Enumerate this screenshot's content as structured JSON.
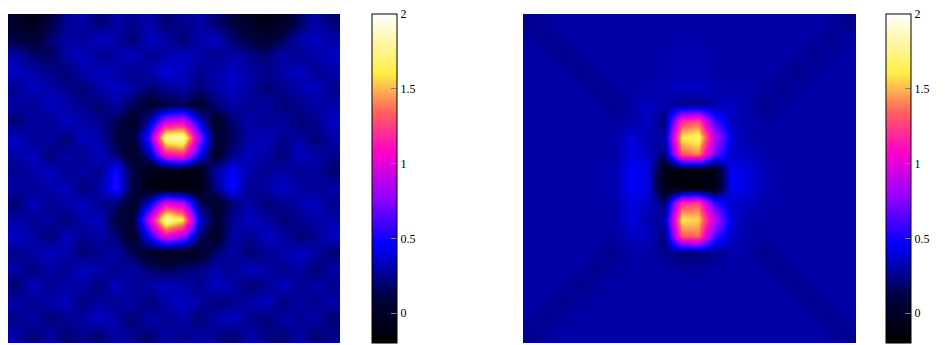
{
  "chart_data": [
    {
      "type": "heatmap",
      "tick_labels": false,
      "zlim": [
        -0.2,
        2
      ],
      "zticks": [
        0,
        0.5,
        1,
        1.5,
        2
      ],
      "z": [
        [
          0.0,
          -0.1,
          0.1,
          0.25,
          0.3,
          0.2,
          0.3,
          0.25,
          0.3,
          0.2,
          0.25,
          0.3,
          0.2,
          0.1,
          0.0,
          -0.1,
          0.0,
          0.15,
          0.3,
          0.2
        ],
        [
          0.1,
          0.05,
          0.2,
          0.3,
          0.25,
          0.35,
          0.3,
          0.2,
          0.35,
          0.3,
          0.2,
          0.3,
          0.35,
          0.2,
          0.1,
          0.05,
          0.15,
          0.3,
          0.35,
          0.3
        ],
        [
          0.3,
          0.2,
          0.15,
          0.3,
          0.35,
          0.25,
          0.3,
          0.35,
          0.25,
          0.3,
          0.35,
          0.3,
          0.25,
          0.3,
          0.25,
          0.2,
          0.3,
          0.25,
          0.3,
          0.35
        ],
        [
          0.35,
          0.3,
          0.25,
          0.2,
          0.3,
          0.35,
          0.3,
          0.25,
          0.3,
          0.4,
          0.35,
          0.25,
          0.3,
          0.35,
          0.3,
          0.25,
          0.3,
          0.35,
          0.25,
          0.3
        ],
        [
          0.25,
          0.35,
          0.3,
          0.25,
          0.2,
          0.3,
          0.35,
          0.3,
          0.2,
          0.25,
          0.3,
          0.2,
          0.3,
          0.35,
          0.3,
          0.2,
          0.25,
          0.3,
          0.35,
          0.25
        ],
        [
          0.3,
          0.25,
          0.35,
          0.3,
          0.25,
          0.2,
          0.3,
          0.15,
          0.05,
          0.1,
          0.15,
          0.05,
          0.2,
          0.3,
          0.25,
          0.3,
          0.2,
          0.25,
          0.3,
          0.3
        ],
        [
          0.2,
          0.3,
          0.25,
          0.35,
          0.3,
          0.25,
          0.15,
          0.0,
          0.3,
          0.9,
          1.0,
          0.4,
          0.0,
          0.2,
          0.3,
          0.25,
          0.3,
          0.2,
          0.25,
          0.35
        ],
        [
          0.35,
          0.25,
          0.3,
          0.2,
          0.35,
          0.3,
          0.1,
          0.05,
          0.6,
          1.8,
          1.85,
          0.8,
          0.05,
          0.15,
          0.3,
          0.35,
          0.25,
          0.3,
          0.2,
          0.3
        ],
        [
          0.3,
          0.35,
          0.2,
          0.3,
          0.25,
          0.35,
          0.2,
          0.0,
          0.3,
          1.1,
          1.2,
          0.5,
          0.0,
          0.25,
          0.35,
          0.3,
          0.2,
          0.35,
          0.3,
          0.25
        ],
        [
          0.25,
          0.3,
          0.35,
          0.25,
          0.3,
          0.25,
          0.5,
          0.1,
          -0.1,
          -0.1,
          -0.1,
          -0.1,
          0.3,
          0.45,
          0.3,
          0.25,
          0.3,
          0.25,
          0.3,
          0.2
        ],
        [
          0.3,
          0.25,
          0.3,
          0.35,
          0.2,
          0.3,
          0.55,
          0.1,
          -0.1,
          -0.15,
          -0.15,
          -0.1,
          0.25,
          0.5,
          0.25,
          0.3,
          0.35,
          0.3,
          0.25,
          0.3
        ],
        [
          0.2,
          0.35,
          0.25,
          0.3,
          0.35,
          0.25,
          0.2,
          0.0,
          0.4,
          1.0,
          0.9,
          0.2,
          0.0,
          0.2,
          0.3,
          0.2,
          0.25,
          0.3,
          0.35,
          0.25
        ],
        [
          0.3,
          0.25,
          0.3,
          0.2,
          0.3,
          0.35,
          0.1,
          0.05,
          0.9,
          1.85,
          1.6,
          0.4,
          0.05,
          0.25,
          0.35,
          0.3,
          0.2,
          0.25,
          0.3,
          0.3
        ],
        [
          0.35,
          0.3,
          0.2,
          0.35,
          0.25,
          0.3,
          0.2,
          0.0,
          0.5,
          1.0,
          0.8,
          0.2,
          0.0,
          0.3,
          0.25,
          0.35,
          0.3,
          0.2,
          0.25,
          0.35
        ],
        [
          0.25,
          0.3,
          0.35,
          0.3,
          0.2,
          0.25,
          0.3,
          0.15,
          0.0,
          -0.05,
          -0.05,
          0.0,
          0.2,
          0.3,
          0.2,
          0.25,
          0.3,
          0.35,
          0.3,
          0.2
        ],
        [
          0.3,
          0.2,
          0.3,
          0.25,
          0.35,
          0.3,
          0.25,
          0.3,
          0.2,
          0.15,
          0.2,
          0.25,
          0.3,
          0.25,
          0.35,
          0.3,
          0.25,
          0.3,
          0.2,
          0.3
        ],
        [
          0.2,
          0.35,
          0.25,
          0.3,
          0.3,
          0.2,
          0.35,
          0.25,
          0.3,
          0.35,
          0.3,
          0.25,
          0.35,
          0.3,
          0.2,
          0.25,
          0.35,
          0.25,
          0.3,
          0.25
        ],
        [
          0.3,
          0.25,
          0.3,
          0.35,
          0.2,
          0.3,
          0.25,
          0.3,
          0.2,
          0.3,
          0.35,
          0.3,
          0.2,
          0.25,
          0.3,
          0.35,
          0.2,
          0.3,
          0.25,
          0.3
        ],
        [
          0.25,
          0.3,
          0.2,
          0.25,
          0.3,
          0.35,
          0.3,
          0.2,
          0.3,
          0.25,
          0.3,
          0.2,
          0.3,
          0.35,
          0.25,
          0.2,
          0.3,
          0.25,
          0.3,
          0.2
        ],
        [
          0.3,
          0.2,
          0.3,
          0.2,
          0.25,
          0.2,
          0.3,
          0.25,
          0.2,
          0.3,
          0.25,
          0.3,
          0.25,
          0.2,
          0.3,
          0.25,
          0.2,
          0.3,
          0.2,
          0.25
        ]
      ]
    },
    {
      "type": "heatmap",
      "tick_labels": false,
      "zlim": [
        -0.2,
        2
      ],
      "zticks": [
        0,
        0.5,
        1,
        1.5,
        2
      ],
      "z": [
        [
          0.25,
          0.28,
          0.3,
          0.3,
          0.3,
          0.3,
          0.3,
          0.3,
          0.3,
          0.3,
          0.3,
          0.3,
          0.3,
          0.3,
          0.3,
          0.3,
          0.3,
          0.3,
          0.28,
          0.25
        ],
        [
          0.28,
          0.25,
          0.28,
          0.3,
          0.3,
          0.3,
          0.3,
          0.3,
          0.3,
          0.3,
          0.3,
          0.3,
          0.3,
          0.3,
          0.3,
          0.3,
          0.3,
          0.28,
          0.25,
          0.28
        ],
        [
          0.3,
          0.28,
          0.25,
          0.28,
          0.3,
          0.3,
          0.3,
          0.3,
          0.3,
          0.32,
          0.32,
          0.3,
          0.3,
          0.3,
          0.3,
          0.3,
          0.28,
          0.25,
          0.28,
          0.3
        ],
        [
          0.3,
          0.3,
          0.28,
          0.25,
          0.28,
          0.3,
          0.3,
          0.3,
          0.3,
          0.32,
          0.32,
          0.3,
          0.3,
          0.3,
          0.3,
          0.28,
          0.25,
          0.28,
          0.3,
          0.3
        ],
        [
          0.3,
          0.3,
          0.3,
          0.28,
          0.25,
          0.28,
          0.3,
          0.3,
          0.32,
          0.35,
          0.35,
          0.32,
          0.3,
          0.3,
          0.28,
          0.25,
          0.28,
          0.3,
          0.3,
          0.3
        ],
        [
          0.3,
          0.3,
          0.3,
          0.3,
          0.28,
          0.25,
          0.3,
          0.35,
          0.3,
          0.25,
          0.25,
          0.3,
          0.35,
          0.3,
          0.25,
          0.28,
          0.3,
          0.3,
          0.3,
          0.3
        ],
        [
          0.3,
          0.3,
          0.3,
          0.3,
          0.3,
          0.28,
          0.3,
          0.35,
          0.2,
          1.2,
          1.3,
          0.6,
          0.35,
          0.3,
          0.28,
          0.3,
          0.3,
          0.3,
          0.3,
          0.3
        ],
        [
          0.3,
          0.3,
          0.3,
          0.3,
          0.3,
          0.3,
          0.4,
          0.3,
          0.3,
          1.6,
          1.7,
          0.9,
          0.4,
          0.3,
          0.3,
          0.3,
          0.3,
          0.3,
          0.3,
          0.3
        ],
        [
          0.3,
          0.3,
          0.3,
          0.3,
          0.3,
          0.3,
          0.4,
          0.35,
          0.2,
          1.3,
          1.4,
          0.7,
          0.35,
          0.35,
          0.3,
          0.3,
          0.3,
          0.3,
          0.3,
          0.3
        ],
        [
          0.3,
          0.3,
          0.3,
          0.3,
          0.3,
          0.32,
          0.45,
          0.4,
          -0.1,
          -0.15,
          -0.15,
          -0.1,
          0.45,
          0.4,
          0.32,
          0.3,
          0.3,
          0.3,
          0.3,
          0.3
        ],
        [
          0.3,
          0.3,
          0.3,
          0.3,
          0.3,
          0.32,
          0.45,
          0.4,
          -0.1,
          -0.15,
          -0.15,
          -0.1,
          0.45,
          0.4,
          0.32,
          0.3,
          0.3,
          0.3,
          0.3,
          0.3
        ],
        [
          0.3,
          0.3,
          0.3,
          0.3,
          0.3,
          0.3,
          0.4,
          0.35,
          0.2,
          1.2,
          1.3,
          0.6,
          0.35,
          0.35,
          0.3,
          0.3,
          0.3,
          0.3,
          0.3,
          0.3
        ],
        [
          0.3,
          0.3,
          0.3,
          0.3,
          0.3,
          0.3,
          0.4,
          0.3,
          0.3,
          1.6,
          1.55,
          0.9,
          0.4,
          0.3,
          0.3,
          0.3,
          0.3,
          0.3,
          0.3,
          0.3
        ],
        [
          0.3,
          0.3,
          0.3,
          0.3,
          0.3,
          0.28,
          0.35,
          0.35,
          0.2,
          1.3,
          1.35,
          0.6,
          0.35,
          0.3,
          0.28,
          0.3,
          0.3,
          0.3,
          0.3,
          0.3
        ],
        [
          0.3,
          0.3,
          0.3,
          0.3,
          0.28,
          0.25,
          0.3,
          0.3,
          0.25,
          0.2,
          0.2,
          0.25,
          0.3,
          0.3,
          0.25,
          0.28,
          0.3,
          0.3,
          0.3,
          0.3
        ],
        [
          0.3,
          0.3,
          0.3,
          0.28,
          0.25,
          0.28,
          0.3,
          0.3,
          0.3,
          0.28,
          0.28,
          0.3,
          0.3,
          0.3,
          0.28,
          0.25,
          0.28,
          0.3,
          0.3,
          0.3
        ],
        [
          0.3,
          0.3,
          0.28,
          0.25,
          0.28,
          0.3,
          0.3,
          0.3,
          0.3,
          0.3,
          0.3,
          0.3,
          0.3,
          0.3,
          0.3,
          0.28,
          0.25,
          0.28,
          0.3,
          0.3
        ],
        [
          0.3,
          0.28,
          0.25,
          0.28,
          0.3,
          0.3,
          0.3,
          0.3,
          0.3,
          0.3,
          0.3,
          0.3,
          0.3,
          0.3,
          0.3,
          0.3,
          0.28,
          0.25,
          0.28,
          0.3
        ],
        [
          0.28,
          0.25,
          0.28,
          0.3,
          0.3,
          0.3,
          0.3,
          0.3,
          0.3,
          0.3,
          0.3,
          0.3,
          0.3,
          0.3,
          0.3,
          0.3,
          0.3,
          0.28,
          0.25,
          0.28
        ],
        [
          0.25,
          0.28,
          0.3,
          0.3,
          0.3,
          0.3,
          0.3,
          0.3,
          0.3,
          0.3,
          0.3,
          0.3,
          0.3,
          0.3,
          0.3,
          0.3,
          0.3,
          0.3,
          0.28,
          0.25
        ]
      ]
    }
  ]
}
